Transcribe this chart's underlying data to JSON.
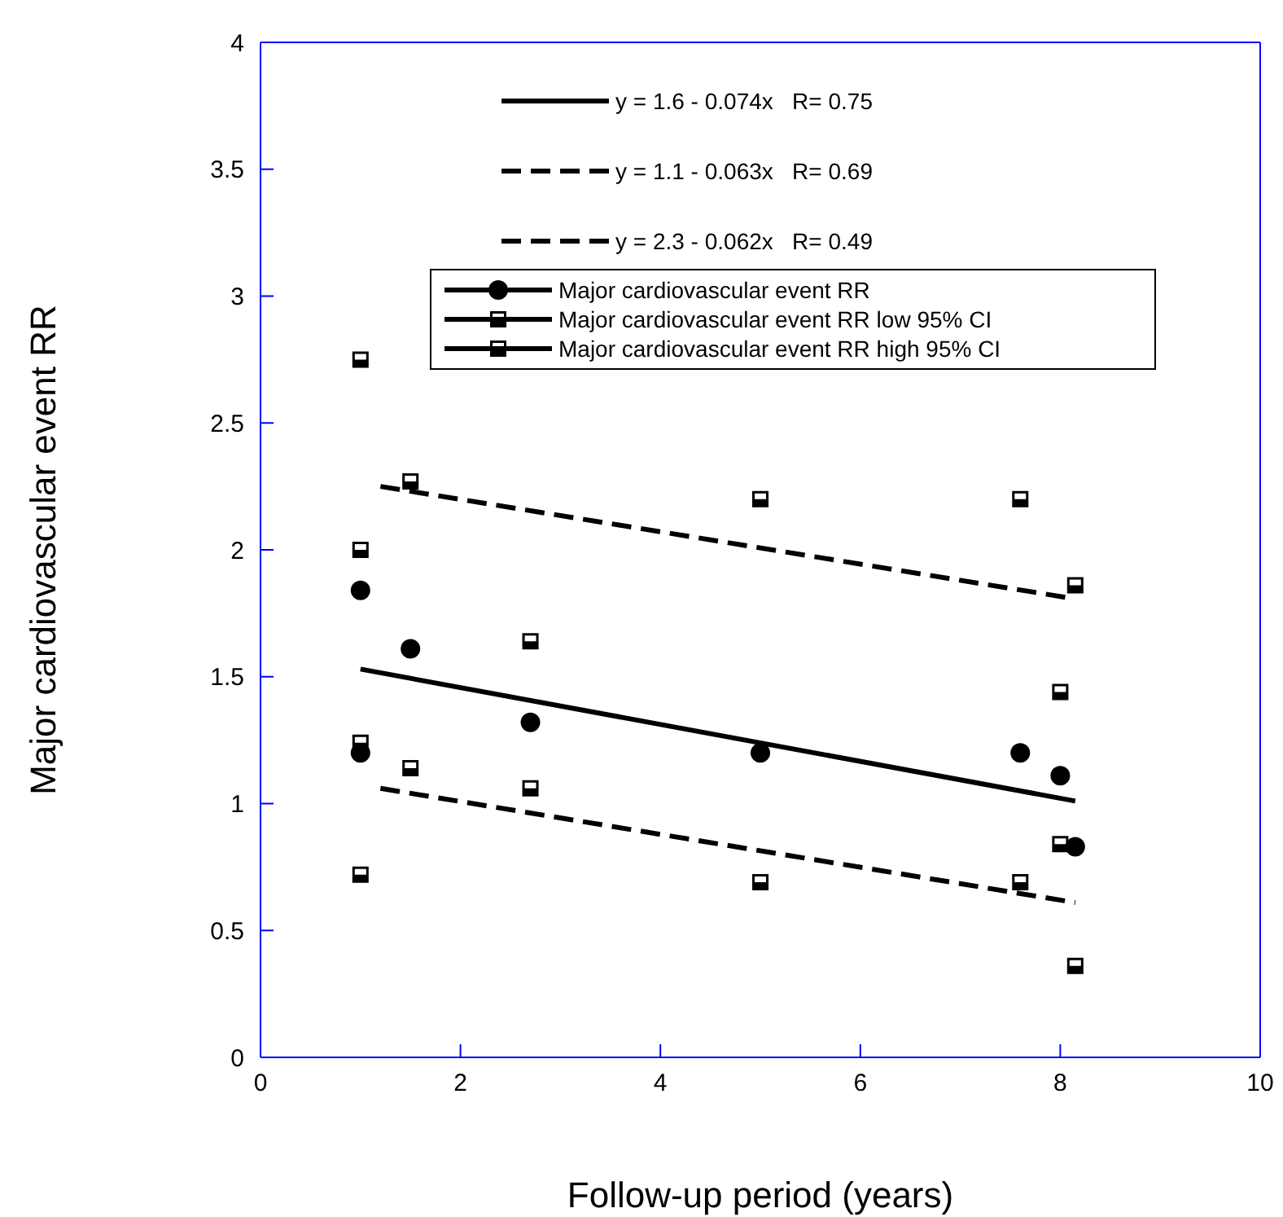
{
  "chart_data": {
    "type": "scatter",
    "xlabel": "Follow-up period (years)",
    "ylabel": "Major cardiovascular event RR",
    "xlim": [
      0,
      10
    ],
    "ylim": [
      0,
      4
    ],
    "xticks": [
      0,
      2,
      4,
      6,
      8,
      10
    ],
    "yticks": [
      0,
      0.5,
      1,
      1.5,
      2,
      2.5,
      3,
      3.5,
      4
    ],
    "grid": false,
    "legend": "top",
    "series": [
      {
        "name": "y = 1.6 - 0.074x   R= 0.75",
        "type": "line",
        "color": "#000000",
        "line_style": "solid",
        "marker": "none",
        "x": [
          1.0,
          8.15
        ],
        "values": [
          1.53,
          1.01
        ]
      },
      {
        "name": "y = 1.1 - 0.063x   R= 0.69",
        "type": "line",
        "color": "#000000",
        "line_style": "dashed",
        "marker": "none",
        "x": [
          1.2,
          8.15
        ],
        "values": [
          1.06,
          0.61
        ]
      },
      {
        "name": "y = 2.3 - 0.062x   R= 0.49",
        "type": "line",
        "color": "#000000",
        "line_style": "dashed",
        "marker": "none",
        "x": [
          1.2,
          8.1
        ],
        "values": [
          2.25,
          1.81
        ]
      },
      {
        "name": "Major cardiovascular event RR",
        "color": "#000000",
        "marker": "circle",
        "x": [
          1,
          1,
          1.5,
          2.7,
          5,
          7.6,
          8,
          8.15
        ],
        "values": [
          1.84,
          1.2,
          1.61,
          1.32,
          1.2,
          1.2,
          1.11,
          0.83
        ]
      },
      {
        "name": "Major cardiovascular event RR low 95% CI",
        "color": "#000000",
        "marker": "square",
        "x": [
          1,
          1,
          1.5,
          2.7,
          5,
          7.6,
          8,
          8.15
        ],
        "values": [
          1.24,
          0.72,
          1.14,
          1.06,
          0.69,
          0.69,
          0.84,
          0.36
        ]
      },
      {
        "name": "Major cardiovascular event RR high 95% CI",
        "color": "#000000",
        "marker": "square",
        "x": [
          1,
          1,
          1.5,
          2.7,
          5,
          7.6,
          8,
          8.15
        ],
        "values": [
          2.75,
          2.0,
          2.27,
          1.64,
          2.2,
          2.2,
          1.44,
          1.86
        ]
      }
    ]
  }
}
